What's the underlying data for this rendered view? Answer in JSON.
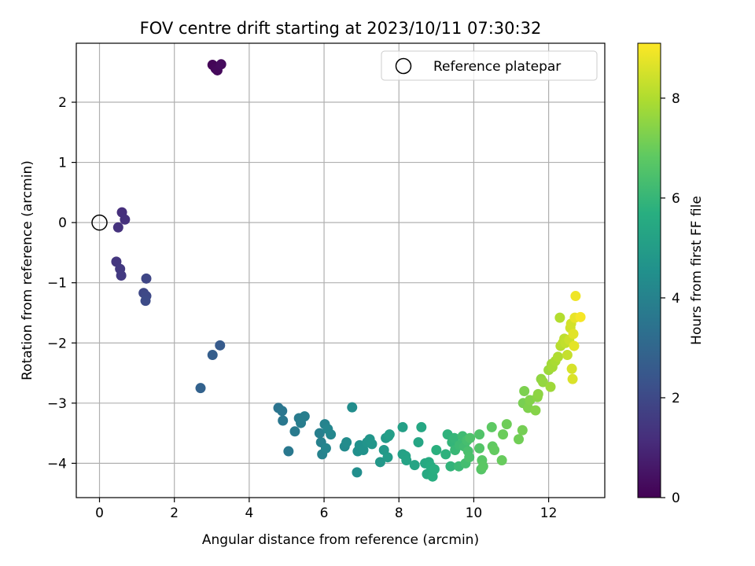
{
  "chart_data": {
    "type": "scatter",
    "title": "FOV centre drift starting at 2023/10/11 07:30:32",
    "xlabel": "Angular distance from reference (arcmin)",
    "ylabel": "Rotation from reference (arcmin)",
    "xlim": [
      -0.62,
      13.5
    ],
    "ylim": [
      -4.57,
      2.98
    ],
    "xticks": [
      0,
      2,
      4,
      6,
      8,
      10,
      12
    ],
    "yticks": [
      -4,
      -3,
      -2,
      -1,
      0,
      1,
      2
    ],
    "grid": true,
    "legend": {
      "position": "top-right",
      "entries": [
        "Reference platepar"
      ]
    },
    "reference_point": {
      "label": "Reference platepar",
      "x": 0,
      "y": 0
    },
    "colorbar": {
      "label": "Hours from first FF file",
      "colormap": "viridis",
      "range": [
        0,
        9.1
      ],
      "ticks": [
        0,
        2,
        4,
        6,
        8
      ]
    },
    "series": [
      {
        "points": [
          {
            "x": 3.02,
            "y": 2.62,
            "c": 0.1
          },
          {
            "x": 3.1,
            "y": 2.56,
            "c": 0.15
          },
          {
            "x": 3.15,
            "y": 2.53,
            "c": 0.2
          },
          {
            "x": 3.25,
            "y": 2.63,
            "c": 0.25
          },
          {
            "x": 0.6,
            "y": 0.17,
            "c": 1.2
          },
          {
            "x": 0.68,
            "y": 0.05,
            "c": 1.25
          },
          {
            "x": 0.5,
            "y": -0.08,
            "c": 1.3
          },
          {
            "x": 0.45,
            "y": -0.65,
            "c": 1.45
          },
          {
            "x": 0.55,
            "y": -0.77,
            "c": 1.5
          },
          {
            "x": 0.58,
            "y": -0.88,
            "c": 1.55
          },
          {
            "x": 1.25,
            "y": -0.93,
            "c": 1.9
          },
          {
            "x": 1.18,
            "y": -1.17,
            "c": 1.95
          },
          {
            "x": 1.25,
            "y": -1.22,
            "c": 2.0
          },
          {
            "x": 1.23,
            "y": -1.3,
            "c": 2.05
          },
          {
            "x": 3.22,
            "y": -2.04,
            "c": 2.6
          },
          {
            "x": 3.02,
            "y": -2.2,
            "c": 2.7
          },
          {
            "x": 2.7,
            "y": -2.75,
            "c": 2.85
          },
          {
            "x": 4.78,
            "y": -3.08,
            "c": 3.5
          },
          {
            "x": 4.88,
            "y": -3.13,
            "c": 3.55
          },
          {
            "x": 4.9,
            "y": -3.29,
            "c": 3.6
          },
          {
            "x": 5.05,
            "y": -3.8,
            "c": 3.65
          },
          {
            "x": 5.22,
            "y": -3.47,
            "c": 3.7
          },
          {
            "x": 5.33,
            "y": -3.25,
            "c": 3.75
          },
          {
            "x": 5.38,
            "y": -3.33,
            "c": 3.8
          },
          {
            "x": 5.48,
            "y": -3.22,
            "c": 3.85
          },
          {
            "x": 5.88,
            "y": -3.5,
            "c": 3.9
          },
          {
            "x": 5.92,
            "y": -3.65,
            "c": 3.95
          },
          {
            "x": 5.95,
            "y": -3.85,
            "c": 4.0
          },
          {
            "x": 6.02,
            "y": -3.35,
            "c": 4.05
          },
          {
            "x": 6.05,
            "y": -3.75,
            "c": 4.1
          },
          {
            "x": 6.1,
            "y": -3.43,
            "c": 4.15
          },
          {
            "x": 6.18,
            "y": -3.52,
            "c": 4.2
          },
          {
            "x": 6.55,
            "y": -3.72,
            "c": 4.3
          },
          {
            "x": 6.6,
            "y": -3.65,
            "c": 4.35
          },
          {
            "x": 6.75,
            "y": -3.07,
            "c": 4.4
          },
          {
            "x": 6.88,
            "y": -4.15,
            "c": 4.45
          },
          {
            "x": 6.9,
            "y": -3.8,
            "c": 4.5
          },
          {
            "x": 6.95,
            "y": -3.7,
            "c": 4.55
          },
          {
            "x": 7.05,
            "y": -3.78,
            "c": 4.6
          },
          {
            "x": 7.15,
            "y": -3.65,
            "c": 4.65
          },
          {
            "x": 7.22,
            "y": -3.6,
            "c": 4.7
          },
          {
            "x": 7.28,
            "y": -3.68,
            "c": 4.75
          },
          {
            "x": 7.5,
            "y": -3.98,
            "c": 4.8
          },
          {
            "x": 7.6,
            "y": -3.78,
            "c": 4.85
          },
          {
            "x": 7.65,
            "y": -3.58,
            "c": 4.9
          },
          {
            "x": 7.7,
            "y": -3.9,
            "c": 4.95
          },
          {
            "x": 7.72,
            "y": -3.55,
            "c": 5.0
          },
          {
            "x": 7.75,
            "y": -3.52,
            "c": 5.05
          },
          {
            "x": 8.1,
            "y": -3.4,
            "c": 5.1
          },
          {
            "x": 8.1,
            "y": -3.85,
            "c": 5.15
          },
          {
            "x": 8.18,
            "y": -3.88,
            "c": 5.2
          },
          {
            "x": 8.2,
            "y": -3.95,
            "c": 5.25
          },
          {
            "x": 8.42,
            "y": -4.03,
            "c": 5.3
          },
          {
            "x": 8.52,
            "y": -3.65,
            "c": 5.35
          },
          {
            "x": 8.6,
            "y": -3.4,
            "c": 5.4
          },
          {
            "x": 8.7,
            "y": -4.0,
            "c": 5.45
          },
          {
            "x": 8.75,
            "y": -4.18,
            "c": 5.5
          },
          {
            "x": 8.8,
            "y": -3.98,
            "c": 5.55
          },
          {
            "x": 8.85,
            "y": -4.05,
            "c": 5.6
          },
          {
            "x": 8.9,
            "y": -4.22,
            "c": 5.65
          },
          {
            "x": 8.95,
            "y": -4.1,
            "c": 5.7
          },
          {
            "x": 9.0,
            "y": -3.78,
            "c": 5.75
          },
          {
            "x": 9.25,
            "y": -3.85,
            "c": 5.8
          },
          {
            "x": 9.3,
            "y": -3.52,
            "c": 5.85
          },
          {
            "x": 9.38,
            "y": -4.05,
            "c": 5.9
          },
          {
            "x": 9.42,
            "y": -3.65,
            "c": 5.95
          },
          {
            "x": 9.48,
            "y": -3.58,
            "c": 6.0
          },
          {
            "x": 9.5,
            "y": -3.78,
            "c": 6.05
          },
          {
            "x": 9.6,
            "y": -4.05,
            "c": 6.1
          },
          {
            "x": 9.62,
            "y": -3.7,
            "c": 6.15
          },
          {
            "x": 9.7,
            "y": -3.55,
            "c": 6.2
          },
          {
            "x": 9.75,
            "y": -3.72,
            "c": 6.25
          },
          {
            "x": 9.78,
            "y": -4.0,
            "c": 6.3
          },
          {
            "x": 9.82,
            "y": -3.62,
            "c": 6.35
          },
          {
            "x": 9.85,
            "y": -3.8,
            "c": 6.4
          },
          {
            "x": 9.88,
            "y": -3.9,
            "c": 6.45
          },
          {
            "x": 9.9,
            "y": -3.58,
            "c": 6.5
          },
          {
            "x": 10.15,
            "y": -3.52,
            "c": 6.55
          },
          {
            "x": 10.15,
            "y": -3.75,
            "c": 6.6
          },
          {
            "x": 10.2,
            "y": -4.1,
            "c": 6.65
          },
          {
            "x": 10.22,
            "y": -3.95,
            "c": 6.7
          },
          {
            "x": 10.25,
            "y": -4.05,
            "c": 6.75
          },
          {
            "x": 10.48,
            "y": -3.4,
            "c": 6.8
          },
          {
            "x": 10.5,
            "y": -3.72,
            "c": 6.85
          },
          {
            "x": 10.55,
            "y": -3.78,
            "c": 6.9
          },
          {
            "x": 10.75,
            "y": -3.95,
            "c": 6.95
          },
          {
            "x": 10.78,
            "y": -3.52,
            "c": 7.0
          },
          {
            "x": 10.88,
            "y": -3.35,
            "c": 7.05
          },
          {
            "x": 11.2,
            "y": -3.6,
            "c": 7.1
          },
          {
            "x": 11.3,
            "y": -3.45,
            "c": 7.15
          },
          {
            "x": 11.32,
            "y": -3.0,
            "c": 7.2
          },
          {
            "x": 11.35,
            "y": -2.8,
            "c": 7.25
          },
          {
            "x": 11.45,
            "y": -3.08,
            "c": 7.3
          },
          {
            "x": 11.5,
            "y": -2.95,
            "c": 7.35
          },
          {
            "x": 11.65,
            "y": -3.12,
            "c": 7.4
          },
          {
            "x": 11.7,
            "y": -2.9,
            "c": 7.45
          },
          {
            "x": 11.72,
            "y": -2.85,
            "c": 7.5
          },
          {
            "x": 11.8,
            "y": -2.6,
            "c": 7.55
          },
          {
            "x": 11.85,
            "y": -2.65,
            "c": 7.6
          },
          {
            "x": 12.0,
            "y": -2.45,
            "c": 7.7
          },
          {
            "x": 12.05,
            "y": -2.73,
            "c": 7.75
          },
          {
            "x": 12.08,
            "y": -2.35,
            "c": 7.8
          },
          {
            "x": 12.1,
            "y": -2.4,
            "c": 7.85
          },
          {
            "x": 12.18,
            "y": -2.3,
            "c": 7.9
          },
          {
            "x": 12.25,
            "y": -2.23,
            "c": 8.0
          },
          {
            "x": 12.3,
            "y": -1.58,
            "c": 8.05
          },
          {
            "x": 12.32,
            "y": -2.05,
            "c": 8.1
          },
          {
            "x": 12.38,
            "y": -2.0,
            "c": 8.15
          },
          {
            "x": 12.42,
            "y": -1.93,
            "c": 8.2
          },
          {
            "x": 12.45,
            "y": -2.0,
            "c": 8.25
          },
          {
            "x": 12.5,
            "y": -2.2,
            "c": 8.3
          },
          {
            "x": 12.55,
            "y": -1.95,
            "c": 8.4
          },
          {
            "x": 12.58,
            "y": -1.75,
            "c": 8.45
          },
          {
            "x": 12.6,
            "y": -1.68,
            "c": 8.5
          },
          {
            "x": 12.62,
            "y": -2.43,
            "c": 8.55
          },
          {
            "x": 12.64,
            "y": -2.6,
            "c": 8.6
          },
          {
            "x": 12.66,
            "y": -1.85,
            "c": 8.7
          },
          {
            "x": 12.68,
            "y": -2.05,
            "c": 8.75
          },
          {
            "x": 12.7,
            "y": -1.58,
            "c": 8.8
          },
          {
            "x": 12.72,
            "y": -1.22,
            "c": 8.9
          },
          {
            "x": 12.85,
            "y": -1.57,
            "c": 9.0
          }
        ]
      }
    ]
  }
}
